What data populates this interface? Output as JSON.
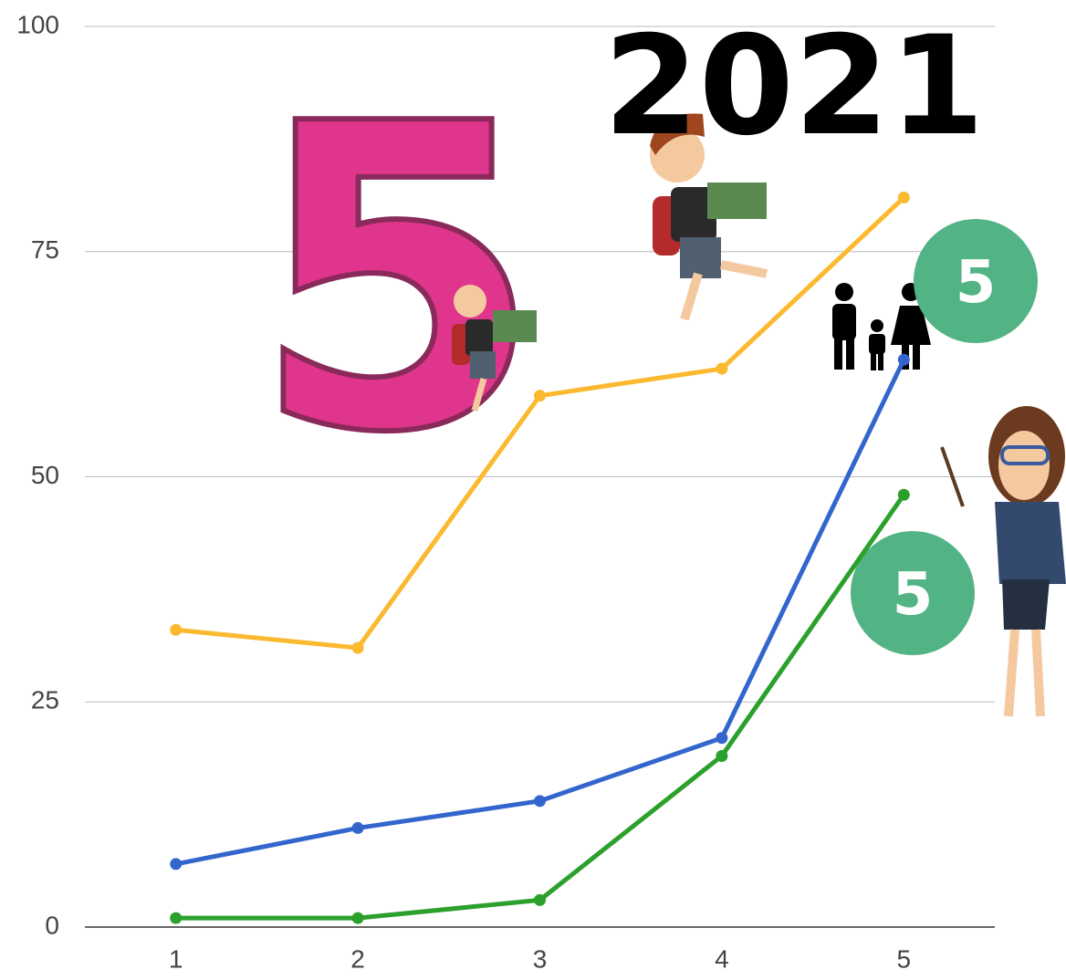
{
  "chart_data": {
    "type": "line",
    "x": [
      1,
      2,
      3,
      4,
      5
    ],
    "xlim": [
      0.5,
      5.5
    ],
    "xticks": [
      1,
      2,
      3,
      4,
      5
    ],
    "ylim": [
      0,
      100
    ],
    "yticks": [
      0,
      25,
      50,
      75,
      100
    ],
    "grid": true,
    "series": [
      {
        "color": "#fbb92f",
        "values": [
          33,
          31,
          59,
          62,
          81
        ]
      },
      {
        "color": "#3366cc",
        "values": [
          7,
          11,
          14,
          21,
          63
        ]
      },
      {
        "color": "#2ca02c",
        "values": [
          1,
          1,
          3,
          19,
          48
        ]
      }
    ],
    "annotations": [
      "5",
      "2021",
      "5",
      "5"
    ]
  }
}
